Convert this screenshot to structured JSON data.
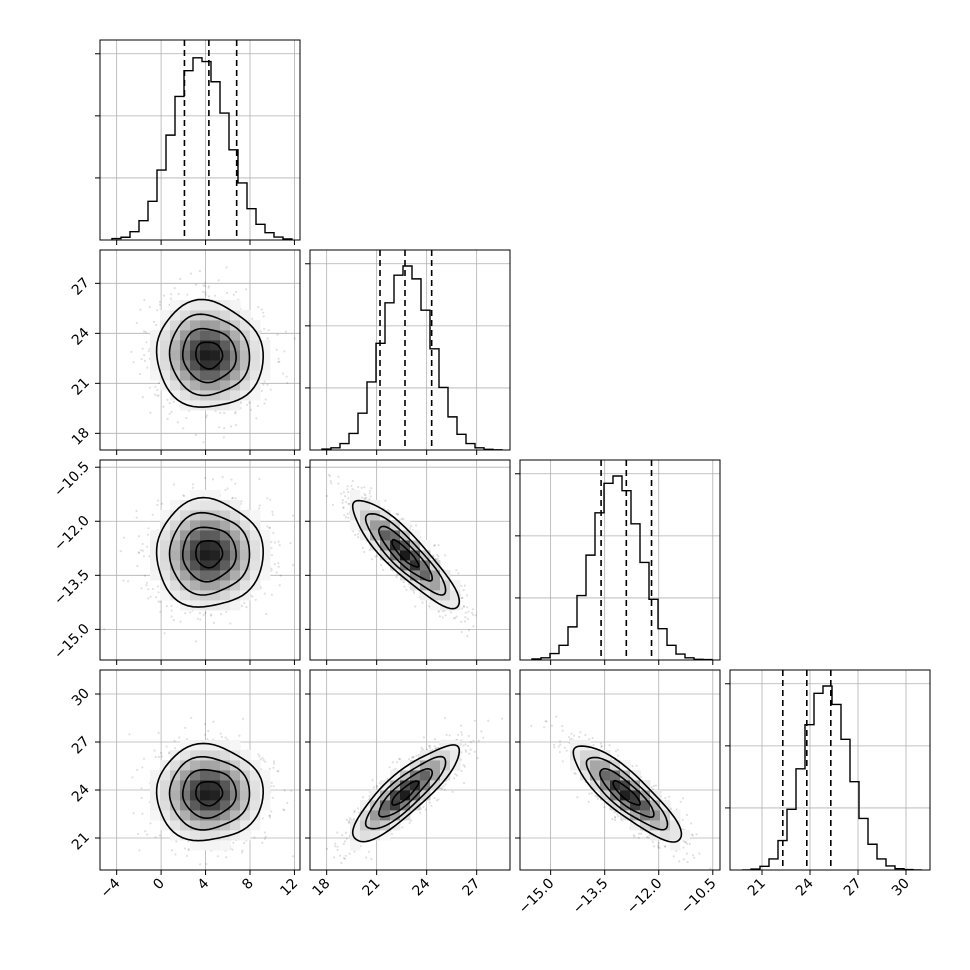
{
  "chart_data": {
    "type": "corner",
    "grid": true,
    "parameters": [
      {
        "id": "p0",
        "range": [
          -5.5,
          12.5
        ],
        "ticks": [
          -4,
          0,
          4,
          8,
          12
        ],
        "tick_labels": [
          "−4",
          "0",
          "4",
          "8",
          "12"
        ],
        "mean": 4.3,
        "sd": 2.4,
        "quantiles": [
          2.1,
          4.3,
          6.8
        ]
      },
      {
        "id": "p1",
        "range": [
          17.0,
          29.0
        ],
        "ticks": [
          18,
          21,
          24,
          27
        ],
        "tick_labels": [
          "18",
          "21",
          "24",
          "27"
        ],
        "mean": 22.7,
        "sd": 1.6,
        "quantiles": [
          21.2,
          22.7,
          24.3
        ]
      },
      {
        "id": "p2",
        "range": [
          -15.85,
          -10.3
        ],
        "ticks": [
          -15.0,
          -13.5,
          -12.0,
          -10.5
        ],
        "tick_labels": [
          "−15.0",
          "−13.5",
          "−12.0",
          "−10.5"
        ],
        "mean": -12.9,
        "sd": 0.75,
        "quantiles": [
          -13.6,
          -12.9,
          -12.2
        ]
      },
      {
        "id": "p3",
        "range": [
          19.0,
          31.5
        ],
        "ticks": [
          21,
          24,
          27,
          30
        ],
        "tick_labels": [
          "21",
          "24",
          "27",
          "30"
        ],
        "mean": 23.8,
        "sd": 1.5,
        "quantiles": [
          22.3,
          23.8,
          25.3
        ]
      }
    ],
    "correlations": [
      [
        1.0,
        -0.05,
        0.0,
        0.0
      ],
      [
        -0.05,
        1.0,
        -0.88,
        0.85
      ],
      [
        0.0,
        -0.88,
        1.0,
        -0.85
      ],
      [
        0.0,
        0.85,
        -0.85,
        1.0
      ]
    ],
    "histograms": [
      [
        0.008,
        0.015,
        0.045,
        0.105,
        0.21,
        0.38,
        0.57,
        0.78,
        0.92,
        0.99,
        0.97,
        0.86,
        0.69,
        0.49,
        0.31,
        0.17,
        0.085,
        0.04,
        0.016,
        0.006
      ],
      [
        0.005,
        0.012,
        0.035,
        0.09,
        0.2,
        0.37,
        0.58,
        0.8,
        0.95,
        1.0,
        0.93,
        0.76,
        0.55,
        0.34,
        0.18,
        0.085,
        0.035,
        0.012,
        0.004,
        0.001
      ],
      [
        0.006,
        0.012,
        0.035,
        0.08,
        0.18,
        0.35,
        0.57,
        0.8,
        0.96,
        1.0,
        0.92,
        0.74,
        0.53,
        0.33,
        0.17,
        0.08,
        0.032,
        0.012,
        0.004,
        0.002
      ],
      [
        0.0,
        0.005,
        0.02,
        0.06,
        0.16,
        0.33,
        0.55,
        0.79,
        0.96,
        1.0,
        0.9,
        0.71,
        0.48,
        0.28,
        0.14,
        0.06,
        0.022,
        0.007,
        0.002,
        0.0
      ]
    ]
  }
}
